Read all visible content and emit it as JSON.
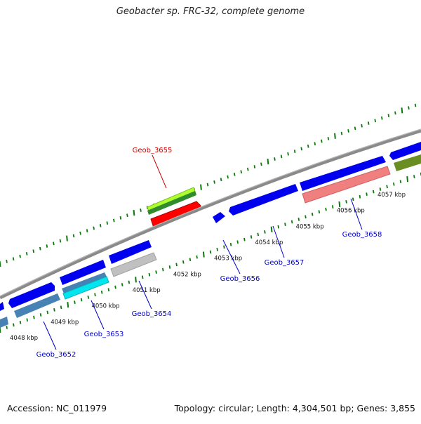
{
  "title": "Geobacter sp. FRC-32, complete genome",
  "footer": {
    "accession": "Accession: NC_011979",
    "summary": "Topology: circular; Length: 4,304,501 bp; Genes: 3,855"
  },
  "colors": {
    "backbone": "#8a8a8a",
    "ticks": "#0a7a0a",
    "label_default": "#0000c8",
    "label_highlight": "#d00000",
    "gene_blue": "#0000ee",
    "gene_red": "#ff0000",
    "gene_green": "#2e8b2e",
    "gene_lightgreen": "#adff2f",
    "gene_salmon": "#f08080",
    "gene_olive": "#6b8e23",
    "gene_steelblue": "#4682b4",
    "gene_cyan": "#00e5ee",
    "gene_silver": "#c0c0c0"
  },
  "scale_labels": [
    {
      "kbp": 4048,
      "text": "4048 kbp"
    },
    {
      "kbp": 4049,
      "text": "4049 kbp"
    },
    {
      "kbp": 4050,
      "text": "4050 kbp"
    },
    {
      "kbp": 4051,
      "text": "4051 kbp"
    },
    {
      "kbp": 4052,
      "text": "4052 kbp"
    },
    {
      "kbp": 4053,
      "text": "4053 kbp"
    },
    {
      "kbp": 4054,
      "text": "4054 kbp"
    },
    {
      "kbp": 4055,
      "text": "4055 kbp"
    },
    {
      "kbp": 4056,
      "text": "4056 kbp"
    },
    {
      "kbp": 4057,
      "text": "4057 kbp"
    }
  ],
  "gene_labels": [
    {
      "name": "Geob_3652",
      "kbp": 4048.7,
      "highlight": false
    },
    {
      "name": "Geob_3653",
      "kbp": 4050.1,
      "highlight": false
    },
    {
      "name": "Geob_3654",
      "kbp": 4051.0,
      "highlight": false
    },
    {
      "name": "Geob_3655",
      "kbp": 4051.5,
      "highlight": true
    },
    {
      "name": "Geob_3656",
      "kbp": 4053.3,
      "highlight": false
    },
    {
      "name": "Geob_3657",
      "kbp": 4054.5,
      "highlight": false
    },
    {
      "name": "Geob_3658",
      "kbp": 4056.3,
      "highlight": false
    }
  ]
}
